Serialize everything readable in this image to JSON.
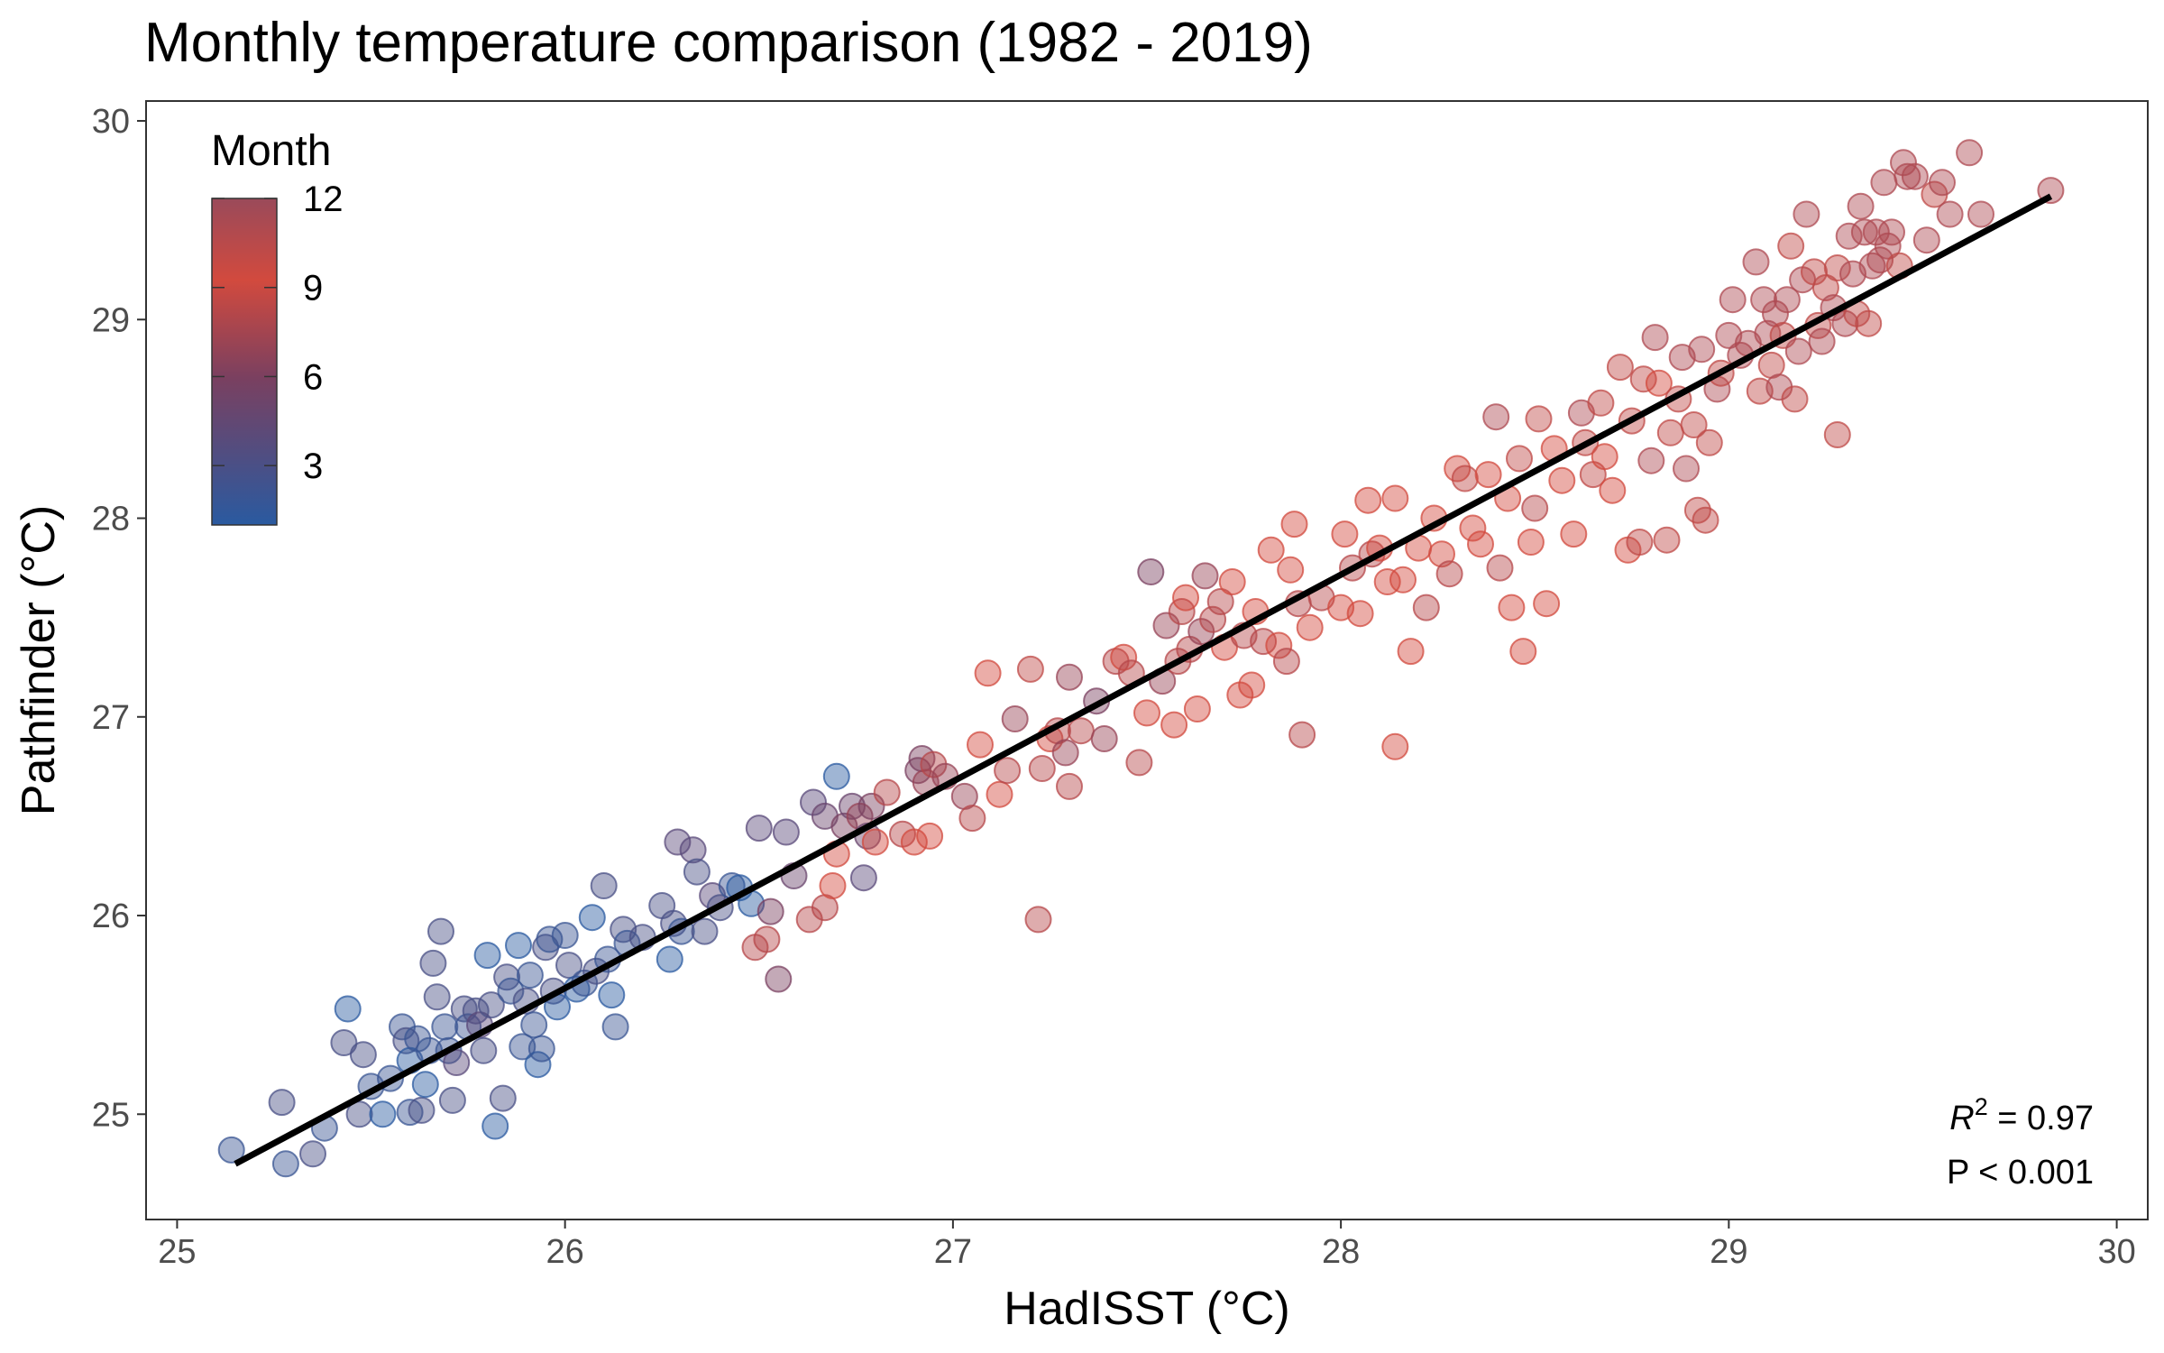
{
  "chart_data": {
    "type": "scatter",
    "title": "Monthly temperature comparison (1982 - 2019)",
    "xlabel": "HadISST (°C)",
    "ylabel": "Pathfinder (°C)",
    "xlim": [
      24.92,
      30.08
    ],
    "ylim": [
      24.47,
      30.1
    ],
    "xticks": [
      25,
      26,
      27,
      28,
      29,
      30
    ],
    "yticks": [
      25,
      26,
      27,
      28,
      29,
      30
    ],
    "grid": false,
    "legend": {
      "title": "Month",
      "type": "colorbar",
      "position": "top-left",
      "range": [
        1,
        12
      ],
      "ticks": [
        3,
        6,
        9,
        12
      ],
      "colors": {
        "low": "#2a5aa0",
        "mid": "#7a4060",
        "high": "#d24a3e",
        "top": "#9a4a5a"
      }
    },
    "annotation": {
      "r2_symbol": "R",
      "r2_exp": "2",
      "r2_value": " = 0.97",
      "p_text": "P < 0.001"
    },
    "fit_line": {
      "x": [
        25.15,
        29.83
      ],
      "y": [
        24.75,
        29.62
      ],
      "color": "#000000"
    },
    "point_alpha": 0.45,
    "points": [
      [
        25.14,
        24.82,
        2
      ],
      [
        25.27,
        25.06,
        3
      ],
      [
        25.28,
        24.75,
        2
      ],
      [
        25.35,
        24.8,
        3
      ],
      [
        25.38,
        24.93,
        2
      ],
      [
        25.43,
        25.36,
        3
      ],
      [
        25.44,
        25.53,
        1
      ],
      [
        25.47,
        25.0,
        3
      ],
      [
        25.48,
        25.3,
        3
      ],
      [
        25.5,
        25.14,
        2
      ],
      [
        25.53,
        25.0,
        1
      ],
      [
        25.55,
        25.18,
        2
      ],
      [
        25.58,
        25.44,
        2
      ],
      [
        25.59,
        25.37,
        3
      ],
      [
        25.6,
        25.01,
        2
      ],
      [
        25.6,
        25.27,
        1
      ],
      [
        25.62,
        25.38,
        2
      ],
      [
        25.63,
        25.02,
        3
      ],
      [
        25.64,
        25.15,
        1
      ],
      [
        25.65,
        25.32,
        2
      ],
      [
        25.66,
        25.76,
        3
      ],
      [
        25.67,
        25.59,
        3
      ],
      [
        25.68,
        25.92,
        3
      ],
      [
        25.69,
        25.44,
        2
      ],
      [
        25.7,
        25.32,
        2
      ],
      [
        25.71,
        25.07,
        3
      ],
      [
        25.72,
        25.26,
        4
      ],
      [
        25.74,
        25.53,
        3
      ],
      [
        25.75,
        25.44,
        2
      ],
      [
        25.77,
        25.52,
        3
      ],
      [
        25.78,
        25.45,
        4
      ],
      [
        25.79,
        25.32,
        3
      ],
      [
        25.8,
        25.8,
        1
      ],
      [
        25.81,
        25.55,
        3
      ],
      [
        25.82,
        24.94,
        1
      ],
      [
        25.84,
        25.08,
        3
      ],
      [
        25.85,
        25.69,
        3
      ],
      [
        25.86,
        25.62,
        2
      ],
      [
        25.88,
        25.85,
        1
      ],
      [
        25.89,
        25.34,
        2
      ],
      [
        25.9,
        25.57,
        3
      ],
      [
        25.91,
        25.7,
        2
      ],
      [
        25.92,
        25.45,
        2
      ],
      [
        25.93,
        25.25,
        1
      ],
      [
        25.94,
        25.33,
        2
      ],
      [
        25.95,
        25.84,
        3
      ],
      [
        25.96,
        25.88,
        2
      ],
      [
        25.97,
        25.62,
        3
      ],
      [
        25.98,
        25.54,
        1
      ],
      [
        26.0,
        25.9,
        2
      ],
      [
        26.01,
        25.75,
        3
      ],
      [
        26.03,
        25.63,
        1
      ],
      [
        26.05,
        25.66,
        2
      ],
      [
        26.07,
        25.99,
        1
      ],
      [
        26.08,
        25.72,
        3
      ],
      [
        26.1,
        26.15,
        3
      ],
      [
        26.11,
        25.78,
        2
      ],
      [
        26.12,
        25.6,
        1
      ],
      [
        26.13,
        25.44,
        2
      ],
      [
        26.15,
        25.93,
        3
      ],
      [
        26.16,
        25.86,
        2
      ],
      [
        26.2,
        25.89,
        3
      ],
      [
        26.25,
        26.05,
        3
      ],
      [
        26.27,
        25.78,
        1
      ],
      [
        26.28,
        25.96,
        3
      ],
      [
        26.29,
        26.37,
        4
      ],
      [
        26.3,
        25.92,
        2
      ],
      [
        26.33,
        26.33,
        4
      ],
      [
        26.34,
        26.22,
        3
      ],
      [
        26.36,
        25.92,
        3
      ],
      [
        26.38,
        26.1,
        4
      ],
      [
        26.4,
        26.04,
        3
      ],
      [
        26.43,
        26.15,
        2
      ],
      [
        26.45,
        26.14,
        1
      ],
      [
        26.48,
        26.06,
        1
      ],
      [
        26.49,
        25.84,
        8
      ],
      [
        26.5,
        26.44,
        4
      ],
      [
        26.52,
        25.88,
        8
      ],
      [
        26.53,
        26.02,
        6
      ],
      [
        26.55,
        25.68,
        6
      ],
      [
        26.57,
        26.42,
        4
      ],
      [
        26.59,
        26.2,
        5
      ],
      [
        26.63,
        25.98,
        8
      ],
      [
        26.64,
        26.57,
        4
      ],
      [
        26.67,
        26.04,
        8
      ],
      [
        26.67,
        26.5,
        5
      ],
      [
        26.69,
        26.15,
        9
      ],
      [
        26.7,
        26.31,
        9
      ],
      [
        26.7,
        26.7,
        1
      ],
      [
        26.72,
        26.45,
        6
      ],
      [
        26.74,
        26.55,
        5
      ],
      [
        26.76,
        26.5,
        7
      ],
      [
        26.77,
        26.19,
        4
      ],
      [
        26.78,
        26.4,
        5
      ],
      [
        26.79,
        26.55,
        6
      ],
      [
        26.8,
        26.37,
        9
      ],
      [
        26.83,
        26.62,
        8
      ],
      [
        26.87,
        26.41,
        8
      ],
      [
        26.9,
        26.37,
        9
      ],
      [
        26.91,
        26.73,
        6
      ],
      [
        26.92,
        26.79,
        6
      ],
      [
        26.93,
        26.67,
        7
      ],
      [
        26.94,
        26.4,
        9
      ],
      [
        26.95,
        26.76,
        8
      ],
      [
        26.98,
        26.7,
        7
      ],
      [
        27.03,
        26.6,
        7
      ],
      [
        27.05,
        26.49,
        8
      ],
      [
        27.07,
        26.86,
        9
      ],
      [
        27.09,
        27.22,
        9
      ],
      [
        27.12,
        26.61,
        9
      ],
      [
        27.14,
        26.73,
        8
      ],
      [
        27.16,
        26.99,
        7
      ],
      [
        27.2,
        27.24,
        10
      ],
      [
        27.22,
        25.98,
        8
      ],
      [
        27.23,
        26.74,
        8
      ],
      [
        27.25,
        26.89,
        9
      ],
      [
        27.27,
        26.93,
        8
      ],
      [
        27.29,
        26.82,
        7
      ],
      [
        27.3,
        26.65,
        8
      ],
      [
        27.3,
        27.2,
        7
      ],
      [
        27.33,
        26.93,
        8
      ],
      [
        27.37,
        27.08,
        6
      ],
      [
        27.39,
        26.89,
        7
      ],
      [
        27.42,
        27.28,
        8
      ],
      [
        27.44,
        27.3,
        9
      ],
      [
        27.46,
        27.22,
        8
      ],
      [
        27.48,
        26.77,
        8
      ],
      [
        27.5,
        27.02,
        9
      ],
      [
        27.51,
        27.73,
        6
      ],
      [
        27.54,
        27.18,
        7
      ],
      [
        27.55,
        27.46,
        7
      ],
      [
        27.57,
        26.96,
        9
      ],
      [
        27.58,
        27.28,
        8
      ],
      [
        27.59,
        27.53,
        8
      ],
      [
        27.6,
        27.6,
        9
      ],
      [
        27.61,
        27.34,
        8
      ],
      [
        27.63,
        27.04,
        9
      ],
      [
        27.64,
        27.43,
        7
      ],
      [
        27.65,
        27.71,
        7
      ],
      [
        27.67,
        27.49,
        8
      ],
      [
        27.69,
        27.58,
        8
      ],
      [
        27.7,
        27.35,
        9
      ],
      [
        27.72,
        27.68,
        9
      ],
      [
        27.74,
        27.11,
        9
      ],
      [
        27.75,
        27.41,
        8
      ],
      [
        27.77,
        27.16,
        9
      ],
      [
        27.78,
        27.53,
        9
      ],
      [
        27.8,
        27.38,
        8
      ],
      [
        27.82,
        27.84,
        9
      ],
      [
        27.84,
        27.36,
        9
      ],
      [
        27.86,
        27.28,
        8
      ],
      [
        27.87,
        27.74,
        9
      ],
      [
        27.88,
        27.97,
        9
      ],
      [
        27.89,
        27.57,
        8
      ],
      [
        27.9,
        26.91,
        8
      ],
      [
        27.92,
        27.45,
        9
      ],
      [
        27.95,
        27.6,
        8
      ],
      [
        28.0,
        27.55,
        9
      ],
      [
        28.01,
        27.92,
        9
      ],
      [
        28.03,
        27.75,
        8
      ],
      [
        28.05,
        27.52,
        9
      ],
      [
        28.07,
        28.09,
        9
      ],
      [
        28.08,
        27.82,
        8
      ],
      [
        28.1,
        27.85,
        9
      ],
      [
        28.12,
        27.68,
        9
      ],
      [
        28.14,
        28.1,
        9
      ],
      [
        28.14,
        26.85,
        9
      ],
      [
        28.16,
        27.69,
        9
      ],
      [
        28.18,
        27.33,
        9
      ],
      [
        28.2,
        27.85,
        9
      ],
      [
        28.22,
        27.55,
        8
      ],
      [
        28.24,
        28.0,
        9
      ],
      [
        28.26,
        27.82,
        9
      ],
      [
        28.28,
        27.72,
        8
      ],
      [
        28.3,
        28.25,
        9
      ],
      [
        28.32,
        28.2,
        10
      ],
      [
        28.34,
        27.95,
        9
      ],
      [
        28.36,
        27.87,
        9
      ],
      [
        28.38,
        28.22,
        9
      ],
      [
        28.4,
        28.51,
        11
      ],
      [
        28.41,
        27.75,
        8
      ],
      [
        28.43,
        28.1,
        9
      ],
      [
        28.44,
        27.55,
        9
      ],
      [
        28.46,
        28.3,
        10
      ],
      [
        28.47,
        27.33,
        9
      ],
      [
        28.49,
        27.88,
        9
      ],
      [
        28.5,
        28.05,
        8
      ],
      [
        28.51,
        28.5,
        10
      ],
      [
        28.53,
        27.57,
        9
      ],
      [
        28.55,
        28.35,
        9
      ],
      [
        28.57,
        28.19,
        9
      ],
      [
        28.6,
        27.92,
        9
      ],
      [
        28.62,
        28.53,
        11
      ],
      [
        28.63,
        28.38,
        10
      ],
      [
        28.65,
        28.22,
        10
      ],
      [
        28.67,
        28.58,
        10
      ],
      [
        28.68,
        28.31,
        9
      ],
      [
        28.7,
        28.14,
        9
      ],
      [
        28.72,
        28.76,
        10
      ],
      [
        28.74,
        27.84,
        9
      ],
      [
        28.75,
        28.49,
        10
      ],
      [
        28.77,
        27.88,
        10
      ],
      [
        28.78,
        28.7,
        10
      ],
      [
        28.8,
        28.29,
        11
      ],
      [
        28.81,
        28.91,
        11
      ],
      [
        28.82,
        28.68,
        9
      ],
      [
        28.84,
        27.89,
        10
      ],
      [
        28.85,
        28.43,
        10
      ],
      [
        28.87,
        28.6,
        10
      ],
      [
        28.88,
        28.81,
        11
      ],
      [
        28.89,
        28.25,
        11
      ],
      [
        28.91,
        28.47,
        10
      ],
      [
        28.92,
        28.04,
        10
      ],
      [
        28.93,
        28.85,
        11
      ],
      [
        28.94,
        27.99,
        10
      ],
      [
        28.95,
        28.38,
        10
      ],
      [
        28.97,
        28.65,
        11
      ],
      [
        28.98,
        28.73,
        10
      ],
      [
        29.0,
        28.92,
        11
      ],
      [
        29.01,
        29.1,
        11
      ],
      [
        29.03,
        28.82,
        11
      ],
      [
        29.05,
        28.88,
        11
      ],
      [
        29.07,
        29.29,
        11
      ],
      [
        29.08,
        28.64,
        10
      ],
      [
        29.09,
        29.1,
        11
      ],
      [
        29.1,
        28.93,
        11
      ],
      [
        29.11,
        28.77,
        10
      ],
      [
        29.12,
        29.03,
        11
      ],
      [
        29.13,
        28.66,
        11
      ],
      [
        29.14,
        28.92,
        10
      ],
      [
        29.15,
        29.1,
        11
      ],
      [
        29.16,
        29.37,
        10
      ],
      [
        29.17,
        28.6,
        10
      ],
      [
        29.18,
        28.84,
        11
      ],
      [
        29.19,
        29.2,
        11
      ],
      [
        29.2,
        29.53,
        11
      ],
      [
        29.22,
        29.24,
        10
      ],
      [
        29.23,
        28.97,
        10
      ],
      [
        29.24,
        28.89,
        11
      ],
      [
        29.25,
        29.16,
        10
      ],
      [
        29.27,
        29.06,
        11
      ],
      [
        29.28,
        29.26,
        10
      ],
      [
        29.28,
        28.42,
        10
      ],
      [
        29.3,
        28.98,
        11
      ],
      [
        29.31,
        29.42,
        11
      ],
      [
        29.32,
        29.23,
        11
      ],
      [
        29.33,
        29.03,
        10
      ],
      [
        29.34,
        29.57,
        11
      ],
      [
        29.35,
        29.44,
        11
      ],
      [
        29.36,
        28.98,
        10
      ],
      [
        29.37,
        29.27,
        11
      ],
      [
        29.38,
        29.44,
        11
      ],
      [
        29.39,
        29.3,
        11
      ],
      [
        29.4,
        29.69,
        11
      ],
      [
        29.41,
        29.37,
        11
      ],
      [
        29.42,
        29.44,
        11
      ],
      [
        29.44,
        29.27,
        10
      ],
      [
        29.45,
        29.79,
        11
      ],
      [
        29.46,
        29.72,
        11
      ],
      [
        29.48,
        29.72,
        11
      ],
      [
        29.51,
        29.4,
        11
      ],
      [
        29.53,
        29.63,
        10
      ],
      [
        29.55,
        29.69,
        11
      ],
      [
        29.57,
        29.53,
        11
      ],
      [
        29.62,
        29.84,
        11
      ],
      [
        29.65,
        29.53,
        11
      ],
      [
        29.83,
        29.65,
        11
      ]
    ]
  }
}
